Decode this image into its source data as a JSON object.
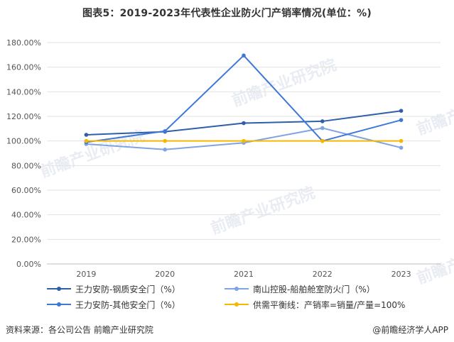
{
  "title": "图表5：2019-2023年代表性企业防火门产销率情况(单位：%)",
  "source": "资料来源：各公司公告 前瞻产业研究院",
  "brand": "@前瞻经济学人APP",
  "watermark": "前瞻产业研究院",
  "chart_data": {
    "type": "line",
    "categories": [
      "2019",
      "2020",
      "2021",
      "2022",
      "2023"
    ],
    "ylim": [
      0,
      180
    ],
    "yticks": [
      0,
      20,
      40,
      60,
      80,
      100,
      120,
      140,
      160,
      180
    ],
    "ytick_labels": [
      "0.00%",
      "20.00%",
      "40.00%",
      "60.00%",
      "80.00%",
      "100.00%",
      "120.00%",
      "140.00%",
      "160.00%",
      "180.00%"
    ],
    "series": [
      {
        "name": "王力安防-钢质安全门（%）",
        "color": "#2e5fa8",
        "marker": true,
        "values": [
          105,
          107.5,
          114.5,
          116,
          124.5
        ]
      },
      {
        "name": "南山控股-船舶舱室防火门（%）",
        "color": "#7fa3e3",
        "marker": true,
        "values": [
          97.5,
          93,
          98.5,
          110.5,
          94.5
        ]
      },
      {
        "name": "王力安防-其他安全门（%）",
        "color": "#3e78d8",
        "marker": true,
        "values": [
          99,
          108,
          169.5,
          100,
          117
        ]
      },
      {
        "name": "供需平衡线：产销率=销量/产量=100%",
        "color": "#f5b800",
        "marker": true,
        "values": [
          100,
          100,
          100,
          100,
          100
        ]
      }
    ]
  }
}
